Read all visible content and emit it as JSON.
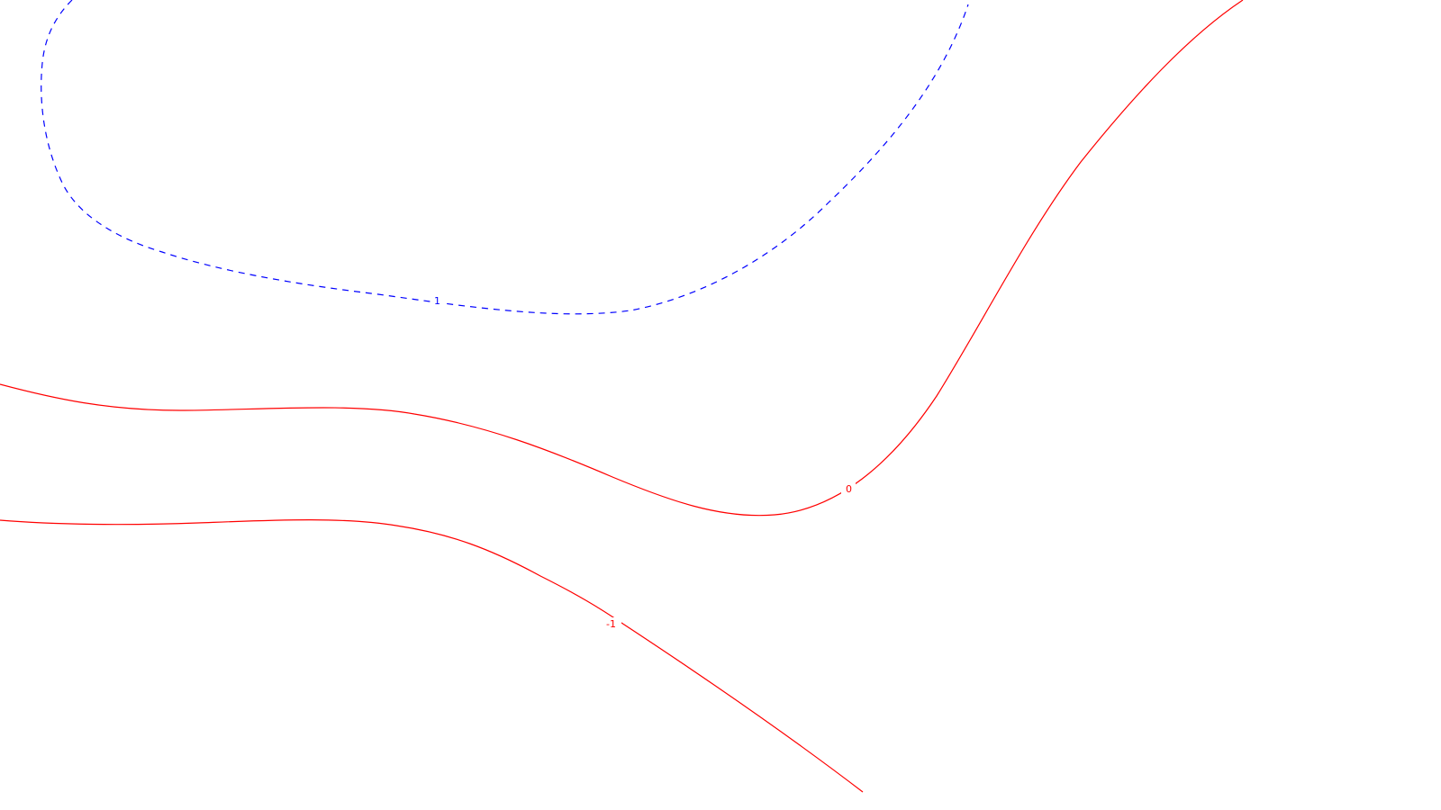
{
  "map": {
    "contours": [
      {
        "id": "contour-1",
        "label": "1",
        "color": "#0000ff",
        "style": "dashed"
      },
      {
        "id": "contour-0",
        "label": "0",
        "color": "#ff0000",
        "style": "solid"
      },
      {
        "id": "contour-neg1",
        "label": "-1",
        "color": "#ff0000",
        "style": "solid"
      }
    ]
  }
}
